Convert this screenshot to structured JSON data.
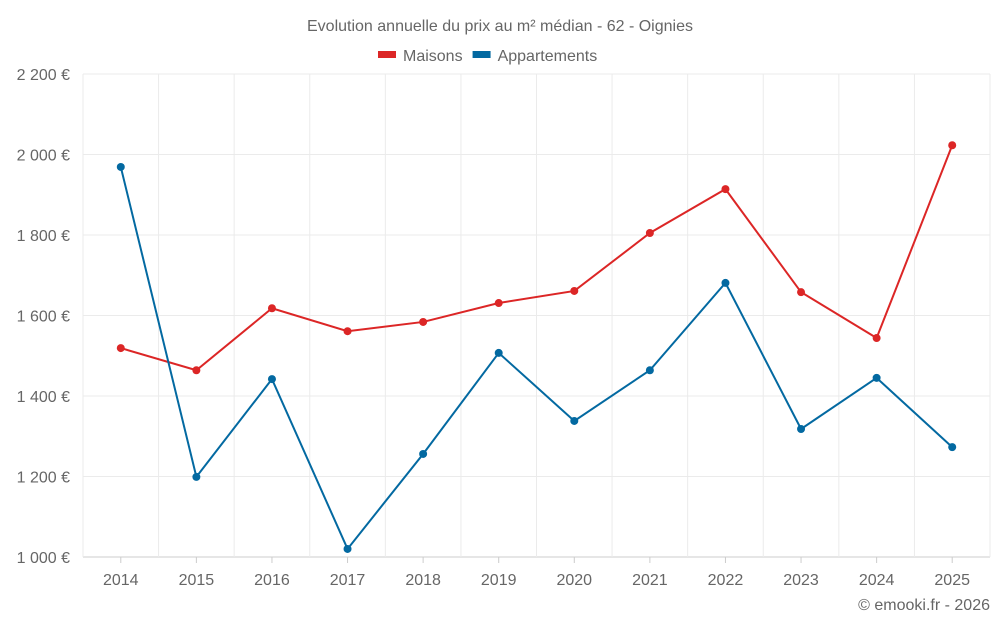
{
  "chart_data": {
    "type": "line",
    "title": "Evolution annuelle du prix au m² médian - 62 - Oignies",
    "categories": [
      "2014",
      "2015",
      "2016",
      "2017",
      "2018",
      "2019",
      "2020",
      "2021",
      "2022",
      "2023",
      "2024",
      "2025"
    ],
    "series": [
      {
        "name": "Maisons",
        "color": "#dc2626",
        "values": [
          1519,
          1464,
          1618,
          1561,
          1584,
          1631,
          1661,
          1805,
          1914,
          1658,
          1544,
          2023
        ]
      },
      {
        "name": "Appartements",
        "color": "#0369a1",
        "values": [
          1969,
          1199,
          1442,
          1020,
          1256,
          1507,
          1338,
          1464,
          1681,
          1318,
          1445,
          1273
        ]
      }
    ],
    "ylim": [
      1000,
      2200
    ],
    "yticks": [
      1000,
      1200,
      1400,
      1600,
      1800,
      2000,
      2200
    ],
    "ytick_labels": [
      "1 000 €",
      "1 200 €",
      "1 400 €",
      "1 600 €",
      "1 800 €",
      "2 000 €",
      "2 200 €"
    ],
    "grid": true,
    "legend": "top-center",
    "credit": "© emooki.fr - 2026"
  }
}
